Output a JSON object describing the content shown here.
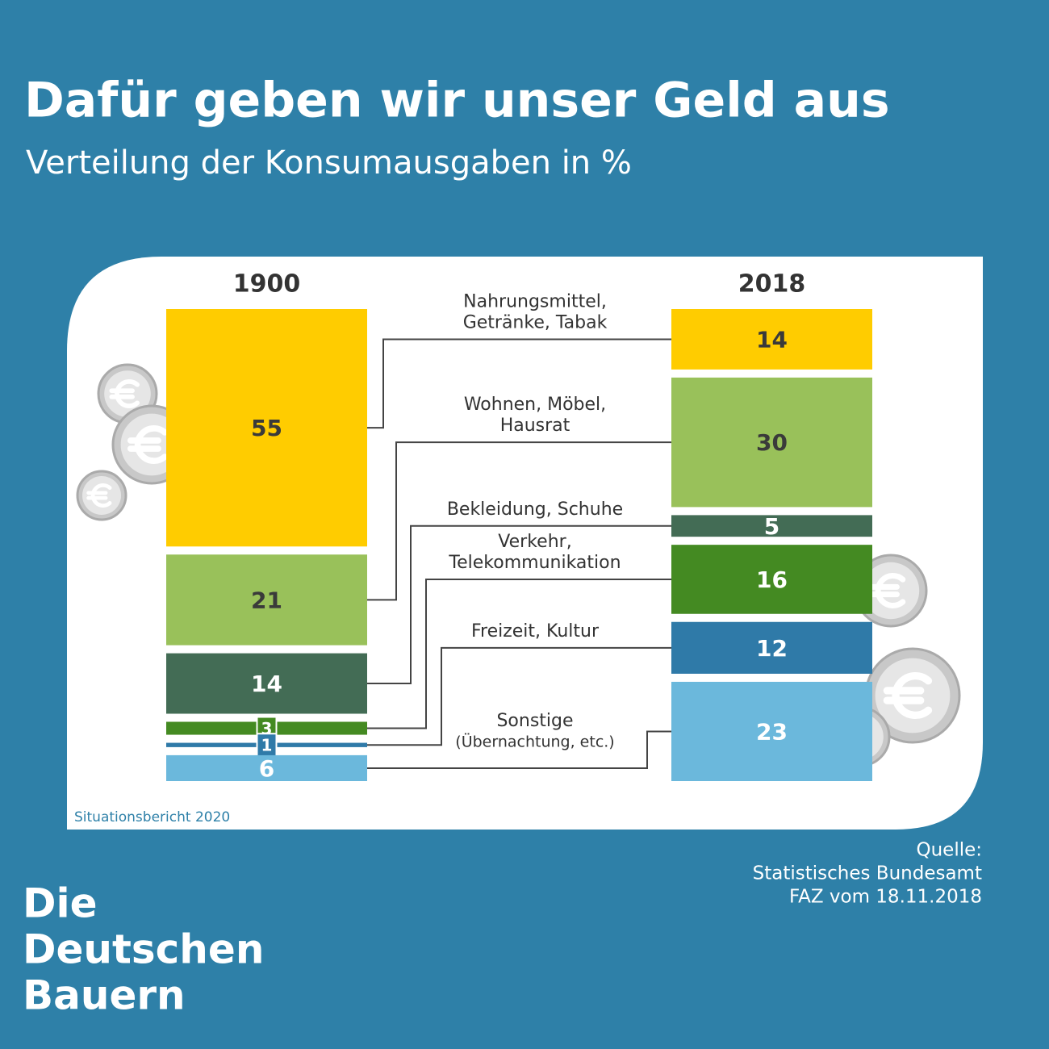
{
  "title": "Dafür geben wir unser Geld aus",
  "subtitle": "Verteilung der Konsumausgaben in %",
  "chart_data": {
    "type": "paired_stacked_column",
    "categories": [
      [
        "Nahrungsmittel,",
        "Getränke, Tabak"
      ],
      [
        "Wohnen, Möbel,",
        "Hausrat"
      ],
      [
        "Bekleidung, Schuhe"
      ],
      [
        "Verkehr,",
        "Telekommunikation"
      ],
      [
        "Freizeit, Kultur"
      ],
      [
        "Sonstige",
        "(Übernachtung, etc.)"
      ]
    ],
    "colors": [
      "#ffcc00",
      "#99c15a",
      "#436c55",
      "#448a22",
      "#2f7aa8",
      "#6bb8dc"
    ],
    "value_label_colors": [
      "#3a3a3a",
      "#3a3a3a",
      "#ffffff",
      "#ffffff",
      "#ffffff",
      "#ffffff"
    ],
    "series": [
      {
        "name": "1900",
        "values": [
          55,
          21,
          14,
          3,
          1,
          6
        ]
      },
      {
        "name": "2018",
        "values": [
          14,
          30,
          5,
          16,
          12,
          23
        ]
      }
    ]
  },
  "note": "Situationsbericht 2020",
  "source": [
    "Quelle:",
    "Statistisches Bundesamt",
    "FAZ vom 18.11.2018"
  ],
  "brand": [
    "Die",
    "Deutschen",
    "Bauern"
  ]
}
